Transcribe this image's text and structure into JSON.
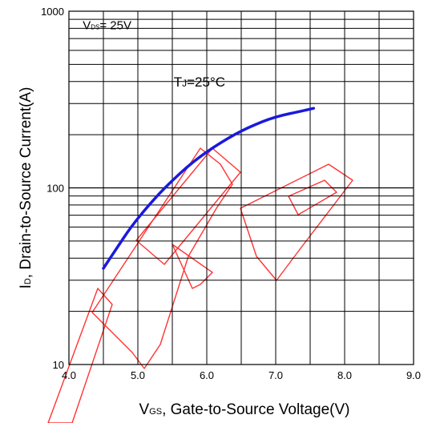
{
  "chart_data": {
    "type": "line",
    "x_axis": {
      "label_main": "V",
      "label_sub": "GS",
      "label_rest": ", Gate-to-Source Voltage(V)",
      "range": [
        4.0,
        9.0
      ],
      "ticks": [
        4.0,
        5.0,
        6.0,
        7.0,
        8.0,
        9.0
      ],
      "tick_labels": [
        "4.0",
        "5.0",
        "6.0",
        "7.0",
        "8.0",
        "9.0"
      ],
      "scale": "linear"
    },
    "y_axis": {
      "label_main": "I",
      "label_sub": "D",
      "label_rest": ", Drain-to-Source Current(A)",
      "range": [
        10,
        1000
      ],
      "ticks": [
        10,
        100,
        1000
      ],
      "tick_labels": [
        "10",
        "100",
        "1000"
      ],
      "scale": "log"
    },
    "grid": true,
    "annotations": [
      {
        "id": "vds",
        "main": "V",
        "sub": "DS",
        "rest": "= 25V",
        "x": 4.2,
        "y": 790
      },
      {
        "id": "tj",
        "main": "T",
        "sub": "J",
        "rest": "=25°C",
        "x": 5.52,
        "y": 375
      }
    ],
    "series": [
      {
        "color": "#1a1adc",
        "x": [
          4.5,
          4.7,
          4.9,
          5.1,
          5.3,
          5.5,
          5.7,
          5.9,
          6.1,
          6.3,
          6.5,
          6.7,
          6.9,
          7.1,
          7.3,
          7.55
        ],
        "y": [
          35,
          46,
          60,
          75,
          92,
          110,
          130,
          150,
          170,
          190,
          210,
          228,
          245,
          258,
          268,
          282
        ]
      }
    ],
    "colors": {
      "curve": "#1a1adc",
      "grid": "#000000",
      "watermark": "#ff3333"
    }
  }
}
